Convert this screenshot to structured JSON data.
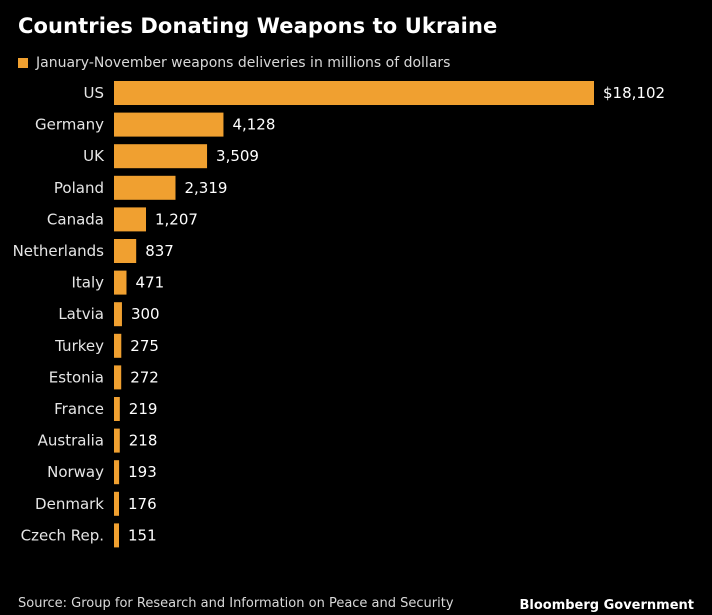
{
  "colors": {
    "background": "#000000",
    "bar": "#f0a030"
  },
  "chart_data": {
    "type": "bar",
    "orientation": "horizontal",
    "title": "Countries Donating Weapons to Ukraine",
    "legend": "January-November weapons deliveries in millions of dollars",
    "legend_placement": "top-left",
    "grid": false,
    "categories": [
      "US",
      "Germany",
      "UK",
      "Poland",
      "Canada",
      "Netherlands",
      "Italy",
      "Latvia",
      "Turkey",
      "Estonia",
      "France",
      "Australia",
      "Norway",
      "Denmark",
      "Czech Rep."
    ],
    "values": [
      18102,
      4128,
      3509,
      2319,
      1207,
      837,
      471,
      300,
      275,
      272,
      219,
      218,
      193,
      176,
      151
    ],
    "data_labels": [
      "$18,102",
      "4,128",
      "3,509",
      "2,319",
      "1,207",
      "837",
      "471",
      "300",
      "275",
      "272",
      "219",
      "218",
      "193",
      "176",
      "151"
    ],
    "xlim": [
      0,
      18102
    ]
  },
  "footer": {
    "source": "Source: Group for Research and Information on Peace and Security",
    "brand": "Bloomberg Government"
  }
}
